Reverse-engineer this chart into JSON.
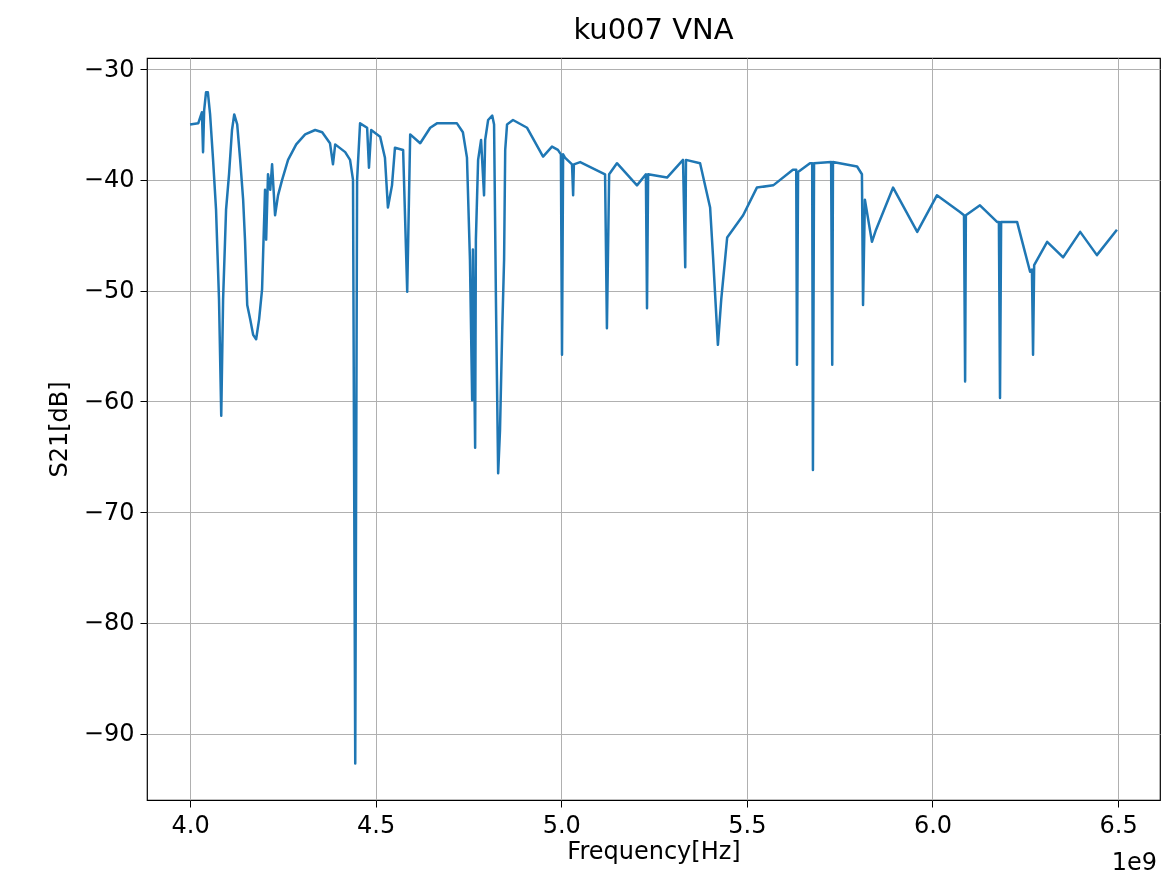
{
  "chart_data": {
    "type": "line",
    "title": "ku007 VNA",
    "xlabel": "Frequency[Hz]",
    "ylabel": "S21[dB]",
    "annotations": [
      "1e9"
    ],
    "xlim": [
      3.884,
      6.613
    ],
    "ylim": [
      -96,
      -29
    ],
    "xticks": [
      {
        "value": 4,
        "label": "4.0"
      },
      {
        "value": 4.5,
        "label": "4.5"
      },
      {
        "value": 5,
        "label": "5.0"
      },
      {
        "value": 5.5,
        "label": "5.5"
      },
      {
        "value": 6,
        "label": "6.0"
      },
      {
        "value": 6.5,
        "label": "6.5"
      }
    ],
    "yticks": [
      {
        "value": -90,
        "label": "−90"
      },
      {
        "value": -80,
        "label": "−80"
      },
      {
        "value": -70,
        "label": "−70"
      },
      {
        "value": -60,
        "label": "−60"
      },
      {
        "value": -50,
        "label": "−50"
      },
      {
        "value": -40,
        "label": "−40"
      },
      {
        "value": -30,
        "label": "−30"
      }
    ],
    "grid": true,
    "line_style": "solid",
    "x": [
      4.0,
      4.022,
      4.032,
      4.035,
      4.038,
      4.043,
      4.048,
      4.054,
      4.062,
      4.07,
      4.078,
      4.084,
      4.089,
      4.097,
      4.105,
      4.113,
      4.119,
      4.127,
      4.135,
      4.143,
      4.148,
      4.154,
      4.162,
      4.17,
      4.178,
      4.186,
      4.194,
      4.202,
      4.205,
      4.21,
      4.216,
      4.221,
      4.229,
      4.237,
      4.248,
      4.264,
      4.286,
      4.31,
      4.337,
      4.356,
      4.377,
      4.385,
      4.391,
      4.418,
      4.431,
      4.439,
      4.445,
      4.45,
      4.458,
      4.477,
      4.482,
      4.488,
      4.512,
      4.525,
      4.533,
      4.544,
      4.552,
      4.574,
      4.585,
      4.593,
      4.62,
      4.647,
      4.665,
      4.719,
      4.735,
      4.746,
      4.754,
      4.76,
      4.762,
      4.768,
      4.77,
      4.776,
      4.784,
      4.792,
      4.795,
      4.803,
      4.814,
      4.819,
      4.824,
      4.83,
      4.835,
      4.841,
      4.846,
      4.849,
      4.854,
      4.87,
      4.908,
      4.951,
      4.975,
      4.991,
      4.999,
      5.002,
      5.005,
      5.01,
      5.029,
      5.032,
      5.034,
      5.051,
      5.118,
      5.123,
      5.129,
      5.15,
      5.204,
      5.228,
      5.231,
      5.234,
      5.285,
      5.328,
      5.334,
      5.336,
      5.374,
      5.401,
      5.409,
      5.422,
      5.431,
      5.447,
      5.49,
      5.527,
      5.571,
      5.624,
      5.633,
      5.635,
      5.638,
      5.67,
      5.676,
      5.678,
      5.681,
      5.727,
      5.73,
      5.732,
      5.797,
      5.81,
      5.813,
      5.818,
      5.837,
      5.848,
      5.894,
      5.959,
      6.012,
      6.074,
      6.085,
      6.088,
      6.09,
      6.128,
      6.174,
      6.179,
      6.182,
      6.185,
      6.228,
      6.263,
      6.268,
      6.271,
      6.274,
      6.309,
      6.352,
      6.398,
      6.443,
      6.497
    ],
    "series": [
      {
        "color": "#1f77b4",
        "values": [
          -35.0,
          -34.9,
          -33.9,
          -37.5,
          -33.7,
          -32.1,
          -32.1,
          -34.1,
          -38.2,
          -42.7,
          -50.8,
          -61.3,
          -50.8,
          -42.7,
          -39.5,
          -35.5,
          -34.1,
          -35.0,
          -38.2,
          -41.8,
          -45.4,
          -51.3,
          -52.6,
          -54.0,
          -54.4,
          -52.6,
          -49.9,
          -40.9,
          -45.4,
          -39.5,
          -40.9,
          -38.6,
          -43.2,
          -41.4,
          -40.0,
          -38.2,
          -36.8,
          -35.9,
          -35.5,
          -35.7,
          -36.7,
          -38.6,
          -36.8,
          -37.5,
          -38.2,
          -40.0,
          -92.7,
          -40.0,
          -34.9,
          -35.3,
          -38.9,
          -35.5,
          -36.1,
          -38.0,
          -42.5,
          -40.5,
          -37.1,
          -37.3,
          -50.1,
          -35.9,
          -36.7,
          -35.3,
          -34.9,
          -34.9,
          -35.7,
          -38.0,
          -47.2,
          -59.9,
          -46.3,
          -64.2,
          -45.4,
          -38.2,
          -36.4,
          -41.4,
          -36.4,
          -34.6,
          -34.2,
          -35.0,
          -50.8,
          -66.5,
          -62.6,
          -53.5,
          -47.2,
          -37.3,
          -35.0,
          -34.6,
          -35.3,
          -37.9,
          -37.0,
          -37.3,
          -37.7,
          -55.8,
          -37.7,
          -38.0,
          -38.6,
          -41.4,
          -38.6,
          -38.4,
          -39.5,
          -53.4,
          -39.5,
          -38.5,
          -40.5,
          -39.5,
          -51.6,
          -39.5,
          -39.8,
          -38.2,
          -47.9,
          -38.2,
          -38.5,
          -42.5,
          -47.0,
          -54.9,
          -50.8,
          -45.2,
          -43.2,
          -40.7,
          -40.5,
          -39.1,
          -39.1,
          -56.7,
          -39.3,
          -38.5,
          -38.5,
          -66.2,
          -38.5,
          -38.4,
          -56.7,
          -38.4,
          -38.8,
          -39.5,
          -51.3,
          -41.8,
          -45.6,
          -44.5,
          -40.7,
          -44.7,
          -41.4,
          -42.9,
          -43.2,
          -58.2,
          -43.2,
          -42.3,
          -43.8,
          -43.8,
          -59.7,
          -43.8,
          -43.8,
          -48.3,
          -48.1,
          -55.8,
          -47.7,
          -45.6,
          -47.0,
          -44.7,
          -46.8,
          -44.5
        ]
      }
    ]
  }
}
